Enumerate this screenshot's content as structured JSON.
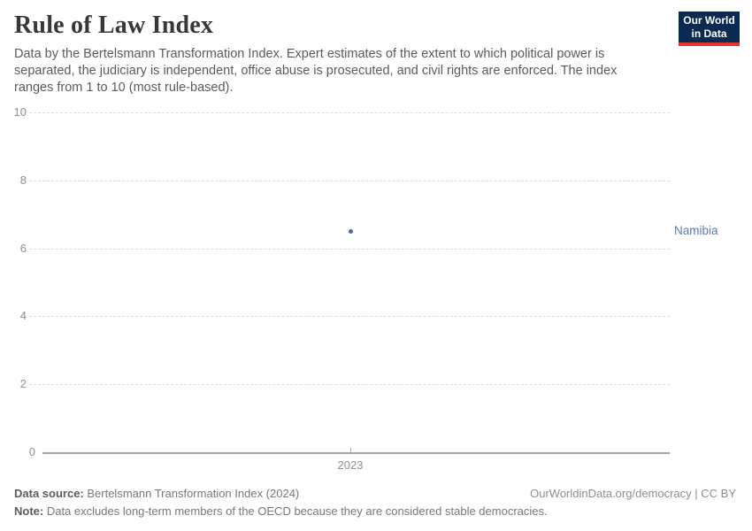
{
  "header": {
    "title": "Rule of Law Index",
    "subtitle": "Data by the Bertelsmann Transformation Index. Expert estimates of the extent to which political power is separated, the judiciary is independent, office abuse is prosecuted, and civil rights are enforced. The index ranges from 1 to 10 (most rule-based).",
    "logo": {
      "line1": "Our World",
      "line2": "in Data"
    }
  },
  "colors": {
    "point_blue": "#4a69a0",
    "entity_label_blue": "#5b7bb5",
    "logo_navy": "#0b2a51",
    "logo_red": "#e0392e",
    "gridline_gray": "#dcdcdc",
    "axis_gray": "#a3a3a3"
  },
  "chart_data": {
    "type": "scatter",
    "title": "Rule of Law Index",
    "x": [
      2023
    ],
    "x_tick_labels": [
      "2023"
    ],
    "series": [
      {
        "name": "Namibia",
        "values": [
          6.5
        ],
        "color": "#4a69a0",
        "label_color": "#5b7bb5"
      }
    ],
    "xlabel": "",
    "ylabel": "",
    "ylim": [
      0,
      10
    ],
    "y_ticks": [
      0,
      2,
      4,
      6,
      8,
      10
    ],
    "grid": "horizontal-dashed",
    "legend": "entity-label-right"
  },
  "footer": {
    "source_label": "Data source:",
    "source_text": " Bertelsmann Transformation Index (2024)",
    "license_text": "OurWorldinData.org/democracy | CC BY",
    "note_label": "Note:",
    "note_text": " Data excludes long-term members of the OECD because they are considered stable democracies."
  }
}
